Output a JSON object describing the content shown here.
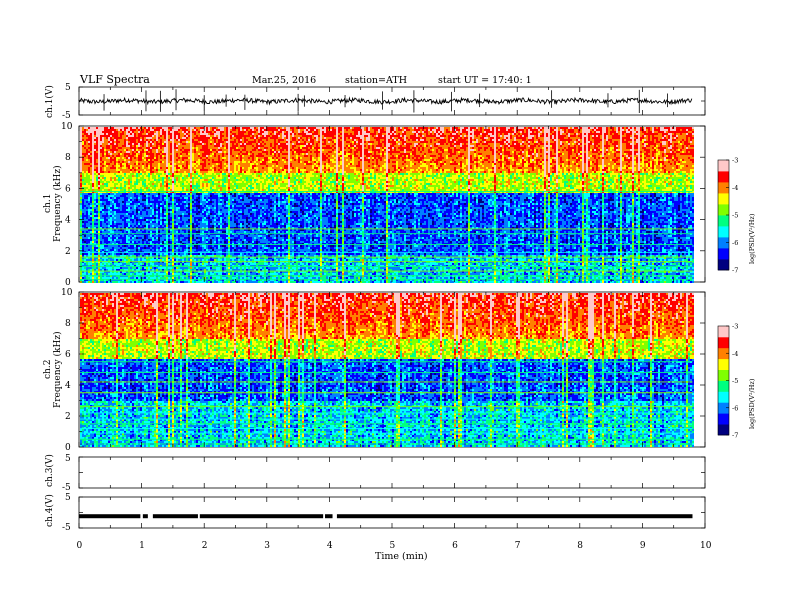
{
  "header": {
    "title": "VLF  Spectra",
    "date": "Mar.25, 2016",
    "station": "station=ATH",
    "start": "start  UT =   17:40: 1"
  },
  "chart_data": [
    {
      "type": "line",
      "name": "ch1-waveform",
      "ylabel": "ch.1(V)",
      "ylim": [
        -5,
        5
      ],
      "xlim": [
        0,
        10
      ],
      "yticks": [
        "5",
        "-5"
      ],
      "baseline_v": 0,
      "data_until_min": 9.8,
      "spike_times_min": [
        0.4,
        1.07,
        1.3,
        1.55,
        2.0,
        2.35,
        2.65,
        3.5,
        3.6,
        4.25,
        4.85,
        5.35,
        5.95,
        6.4,
        7.55,
        8.45,
        8.95,
        9.4
      ]
    },
    {
      "type": "heatmap",
      "name": "ch1-spectrogram",
      "ylabel": "ch.1\nFrequency  (kHz)",
      "xlim": [
        0,
        10
      ],
      "ylim": [
        0,
        10
      ],
      "yticks": [
        "0",
        "2",
        "4",
        "6",
        "8",
        "10"
      ],
      "data_until_min": 9.8,
      "value_range_log": [
        -7,
        -3
      ],
      "strong_band_khz": [
        7.0,
        10.0
      ],
      "dark_band_khz": [
        1.8,
        5.8
      ],
      "tonal_lines_khz": [
        0.15,
        0.4,
        0.7,
        1.0,
        1.3,
        1.6,
        1.9,
        2.4,
        3.1,
        3.4,
        5.8
      ],
      "colorbar": {
        "label": "log(PSD(V²/Hz)",
        "ticks": [
          "-3",
          "-4",
          "-5",
          "-6",
          "-7"
        ],
        "colors": [
          "#000080",
          "#0000ff",
          "#0080ff",
          "#00ffff",
          "#00ff80",
          "#80ff00",
          "#ffff00",
          "#ff8000",
          "#ff0000",
          "#ffc8c8"
        ]
      }
    },
    {
      "type": "heatmap",
      "name": "ch2-spectrogram",
      "ylabel": "ch.2\nFrequency  (kHz)",
      "xlim": [
        0,
        10
      ],
      "ylim": [
        0,
        10
      ],
      "yticks": [
        "0",
        "2",
        "4",
        "6",
        "8",
        "10"
      ],
      "data_until_min": 9.8,
      "value_range_log": [
        -7,
        -3
      ],
      "strong_band_khz": [
        7.0,
        10.0
      ],
      "dark_band_khz": [
        3.0,
        5.8
      ],
      "tonal_lines_khz": [
        0.2,
        0.5,
        0.9,
        1.2,
        1.5,
        1.8,
        2.2,
        2.6,
        3.5,
        4.2,
        4.8,
        5.5
      ],
      "colorbar": {
        "label": "log(PSD(V²/Hz)",
        "ticks": [
          "-3",
          "-4",
          "-5",
          "-6",
          "-7"
        ],
        "colors": [
          "#000080",
          "#0000ff",
          "#0080ff",
          "#00ffff",
          "#00ff80",
          "#80ff00",
          "#ffff00",
          "#ff8000",
          "#ff0000",
          "#ffc8c8"
        ]
      }
    },
    {
      "type": "line",
      "name": "ch3-waveform",
      "ylabel": "ch.3(V)",
      "ylim": [
        -5,
        5
      ],
      "xlim": [
        0,
        10
      ],
      "yticks": [
        "5",
        "-5"
      ],
      "values": []
    },
    {
      "type": "line",
      "name": "ch4-waveform",
      "ylabel": "ch.4(V)",
      "ylim": [
        -5,
        5
      ],
      "xlim": [
        0,
        10
      ],
      "yticks": [
        "5",
        "-5"
      ],
      "baseline_v": -1.2,
      "data_until_min": 9.8,
      "gaps_min": [
        [
          0.98,
          1.02
        ],
        [
          1.1,
          1.18
        ],
        [
          1.9,
          1.93
        ],
        [
          3.9,
          3.93
        ],
        [
          4.05,
          4.12
        ]
      ]
    }
  ],
  "xaxis": {
    "label": "Time  (min)",
    "ticks": [
      "0",
      "1",
      "2",
      "3",
      "4",
      "5",
      "6",
      "7",
      "8",
      "9",
      "10"
    ]
  }
}
